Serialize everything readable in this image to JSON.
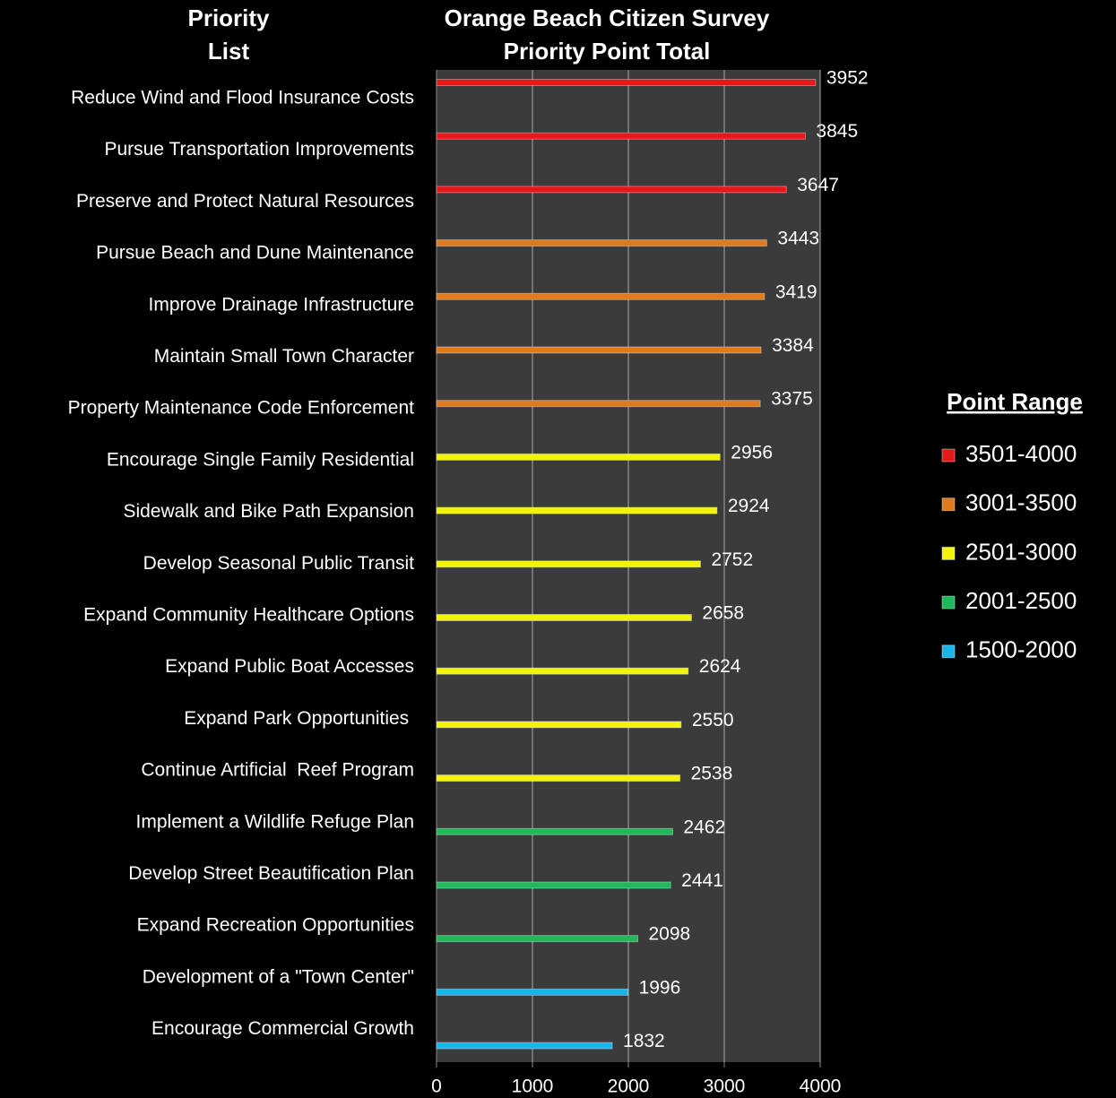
{
  "chart_data": {
    "type": "bar",
    "orientation": "horizontal",
    "title_lines": [
      "Orange Beach Citizen Survey",
      "Priority Point Total"
    ],
    "category_header_lines": [
      "Priority",
      "List"
    ],
    "legend_title": "Point Range",
    "categories": [
      "Reduce Wind and Flood Insurance Costs",
      "Pursue Transportation Improvements",
      "Preserve and Protect Natural Resources",
      "Pursue Beach and Dune Maintenance",
      "Improve Drainage Infrastructure",
      "Maintain Small Town Character",
      "Property Maintenance Code Enforcement",
      "Encourage Single Family Residential",
      "Sidewalk and Bike Path Expansion",
      "Develop Seasonal Public Transit",
      "Expand Community Healthcare Options",
      "Expand Public Boat Accesses",
      "Expand Park Opportunities ",
      "Continue Artificial  Reef Program",
      "Implement a Wildlife Refuge Plan",
      "Develop Street Beautification Plan",
      "Expand Recreation Opportunities",
      "Development of a \"Town Center\"",
      "Encourage Commercial Growth"
    ],
    "series": [
      {
        "name": "3501-4000",
        "color": "#e41a1a",
        "values": [
          3952,
          3845,
          3647,
          null,
          null,
          null,
          null,
          null,
          null,
          null,
          null,
          null,
          null,
          null,
          null,
          null,
          null,
          null,
          null
        ]
      },
      {
        "name": "3001-3500",
        "color": "#e07a1e",
        "values": [
          null,
          null,
          null,
          3443,
          3419,
          3384,
          3375,
          null,
          null,
          null,
          null,
          null,
          null,
          null,
          null,
          null,
          null,
          null,
          null
        ]
      },
      {
        "name": "2501-3000",
        "color": "#f2f20a",
        "values": [
          null,
          null,
          null,
          null,
          null,
          null,
          null,
          2956,
          2924,
          2752,
          2658,
          2624,
          2550,
          2538,
          null,
          null,
          null,
          null,
          null
        ]
      },
      {
        "name": "2001-2500",
        "color": "#1fb85a",
        "values": [
          null,
          null,
          null,
          null,
          null,
          null,
          null,
          null,
          null,
          null,
          null,
          null,
          null,
          null,
          2462,
          2441,
          2098,
          null,
          null
        ]
      },
      {
        "name": "1500-2000",
        "color": "#1ab4e8",
        "values": [
          null,
          null,
          null,
          null,
          null,
          null,
          null,
          null,
          null,
          null,
          null,
          null,
          null,
          null,
          null,
          null,
          null,
          1996,
          1832
        ]
      }
    ],
    "xlim": [
      0,
      4000
    ],
    "xticks": [
      0,
      1000,
      2000,
      3000,
      4000
    ],
    "grid": true
  }
}
